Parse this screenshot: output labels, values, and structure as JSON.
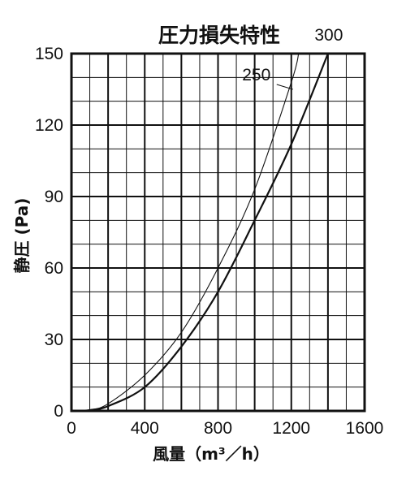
{
  "chart_data": {
    "type": "line",
    "title": "圧力損失特性",
    "xlabel": "風量（m³／h）",
    "ylabel": "静圧 (Pa)",
    "xlim": [
      0,
      1600
    ],
    "ylim": [
      0,
      150
    ],
    "x_ticks": [
      "0",
      "400",
      "800",
      "1200",
      "1600"
    ],
    "y_ticks": [
      "0",
      "30",
      "60",
      "90",
      "120",
      "150"
    ],
    "grid": true,
    "series": [
      {
        "name": "250",
        "line_style": "thin",
        "x": [
          0,
          100,
          200,
          400,
          600,
          800,
          1000,
          1200,
          1240
        ],
        "y": [
          0,
          0.5,
          3,
          15,
          33,
          60,
          93,
          138,
          150
        ]
      },
      {
        "name": "300",
        "line_style": "thick",
        "x": [
          0,
          100,
          200,
          400,
          600,
          800,
          1000,
          1200,
          1400
        ],
        "y": [
          0,
          0.3,
          2,
          10,
          27,
          50,
          80,
          112,
          150
        ]
      }
    ]
  }
}
